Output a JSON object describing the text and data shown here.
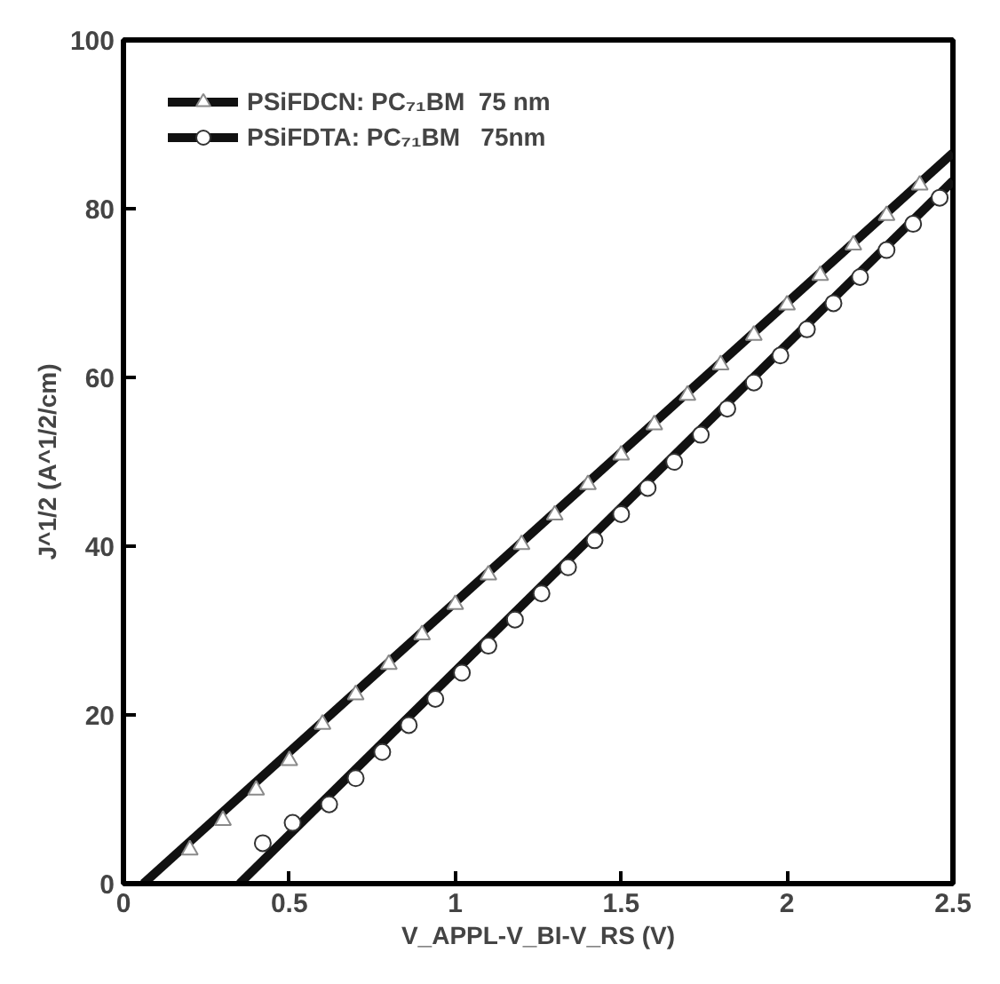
{
  "chart_data": {
    "type": "scatter",
    "xlabel": "V_APPL-V_BI-V_RS (V)",
    "ylabel": "J^1/2 (A^1/2/cm)",
    "xlim": [
      0,
      2.5
    ],
    "ylim": [
      0,
      100
    ],
    "xticks": [
      0,
      0.5,
      1,
      1.5,
      2,
      2.5
    ],
    "yticks": [
      0,
      20,
      40,
      60,
      80,
      100
    ],
    "grid": false,
    "legend": "top left",
    "series": [
      {
        "name": "PSiFDCN: PC₇₁BM  75 nm",
        "marker": "triangle",
        "color": "#8a8a8a",
        "x": [
          0.2,
          0.3,
          0.4,
          0.5,
          0.6,
          0.7,
          0.8,
          0.9,
          1.0,
          1.1,
          1.2,
          1.3,
          1.4,
          1.5,
          1.6,
          1.7,
          1.8,
          1.9,
          2.0,
          2.1,
          2.2,
          2.3,
          2.4
        ],
        "values": [
          4.0,
          7.5,
          11.1,
          14.6,
          18.9,
          22.4,
          26.0,
          29.5,
          33.1,
          36.6,
          40.2,
          43.7,
          47.3,
          50.8,
          54.4,
          57.9,
          61.5,
          65.0,
          68.6,
          72.1,
          75.7,
          79.2,
          82.8
        ]
      },
      {
        "type": "line",
        "color": "#111111",
        "x": [
          0.06,
          2.5
        ],
        "values": [
          0,
          86.6
        ]
      },
      {
        "name": "PSiFDTA: PC₇₁BM   75nm",
        "marker": "circle",
        "color": "#333333",
        "x": [
          0.42,
          0.51,
          0.62,
          0.7,
          0.78,
          0.86,
          0.94,
          1.02,
          1.1,
          1.18,
          1.26,
          1.34,
          1.42,
          1.5,
          1.58,
          1.66,
          1.74,
          1.82,
          1.9,
          1.98,
          2.06,
          2.14,
          2.22,
          2.3,
          2.38,
          2.46
        ],
        "values": [
          4.8,
          7.2,
          9.4,
          12.5,
          15.6,
          18.8,
          21.9,
          25.0,
          28.2,
          31.3,
          34.4,
          37.5,
          40.7,
          43.8,
          46.9,
          50.0,
          53.2,
          56.3,
          59.4,
          62.6,
          65.7,
          68.8,
          71.9,
          75.1,
          78.2,
          81.3
        ]
      },
      {
        "type": "line",
        "color": "#111111",
        "x": [
          0.35,
          2.5
        ],
        "values": [
          0,
          83.3
        ]
      }
    ]
  }
}
